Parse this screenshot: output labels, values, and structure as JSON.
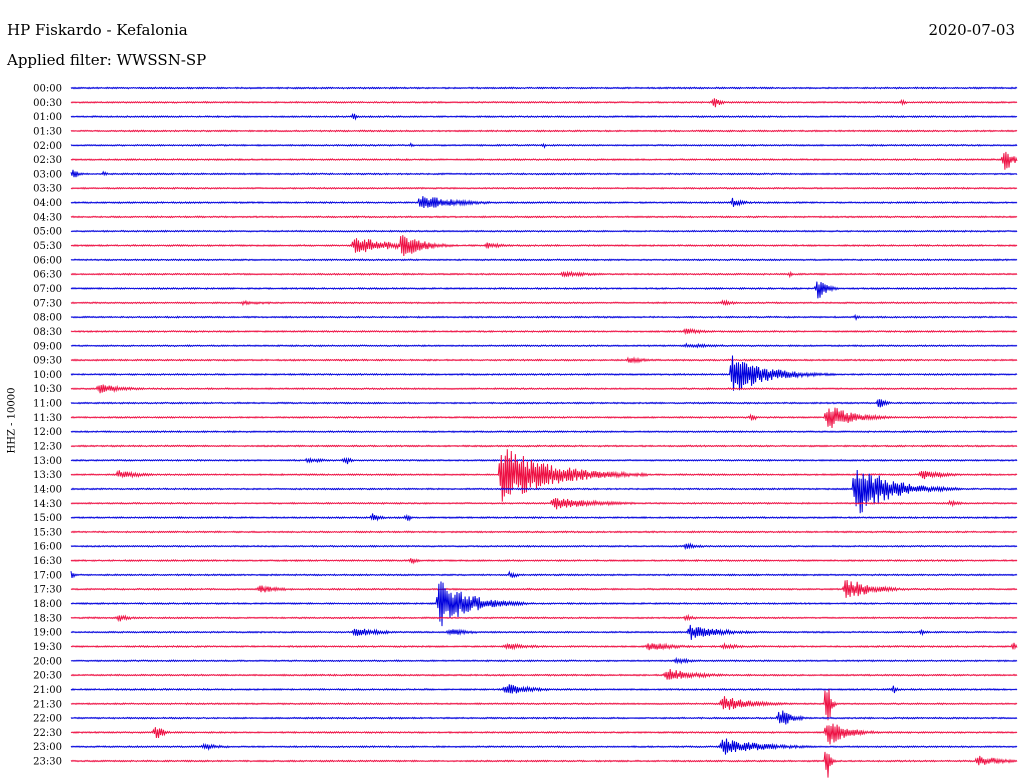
{
  "header": {
    "station": "HP Fiskardo - Kefalonia",
    "date": "2020-07-03",
    "filter": "Applied filter: WWSSN-SP"
  },
  "chart_data": {
    "type": "line",
    "ylabel": "HHZ - 10000",
    "trace_colors": [
      "#0000dd",
      "#ee1144"
    ],
    "rows": [
      {
        "label": "00:00",
        "events": []
      },
      {
        "label": "00:30",
        "events": [
          {
            "x": 0.68,
            "amp": 6,
            "dur": 0.006
          },
          {
            "x": 0.88,
            "amp": 4,
            "dur": 0.003
          }
        ]
      },
      {
        "label": "01:00",
        "events": [
          {
            "x": 0.3,
            "amp": 5,
            "dur": 0.002
          }
        ]
      },
      {
        "label": "01:30",
        "events": []
      },
      {
        "label": "02:00",
        "events": [
          {
            "x": 0.36,
            "amp": 2,
            "dur": 0.002
          },
          {
            "x": 0.5,
            "amp": 2,
            "dur": 0.002
          }
        ]
      },
      {
        "label": "02:30",
        "events": [
          {
            "x": 0.987,
            "amp": 14,
            "dur": 0.008
          }
        ]
      },
      {
        "label": "03:00",
        "events": [
          {
            "x": 0.002,
            "amp": 5,
            "dur": 0.006
          },
          {
            "x": 0.035,
            "amp": 3,
            "dur": 0.003
          }
        ]
      },
      {
        "label": "03:30",
        "events": []
      },
      {
        "label": "04:00",
        "events": [
          {
            "x": 0.37,
            "amp": 8,
            "dur": 0.035
          },
          {
            "x": 0.7,
            "amp": 5,
            "dur": 0.01
          }
        ]
      },
      {
        "label": "04:30",
        "events": []
      },
      {
        "label": "05:00",
        "events": []
      },
      {
        "label": "05:30",
        "events": [
          {
            "x": 0.3,
            "amp": 10,
            "dur": 0.035
          },
          {
            "x": 0.35,
            "amp": 14,
            "dur": 0.02
          },
          {
            "x": 0.44,
            "amp": 3,
            "dur": 0.02
          }
        ]
      },
      {
        "label": "06:00",
        "events": []
      },
      {
        "label": "06:30",
        "events": [
          {
            "x": 0.52,
            "amp": 3,
            "dur": 0.03
          },
          {
            "x": 0.76,
            "amp": 3,
            "dur": 0.005
          }
        ]
      },
      {
        "label": "07:00",
        "events": [
          {
            "x": 0.79,
            "amp": 12,
            "dur": 0.008
          }
        ]
      },
      {
        "label": "07:30",
        "events": [
          {
            "x": 0.18,
            "amp": 2,
            "dur": 0.04
          },
          {
            "x": 0.69,
            "amp": 3,
            "dur": 0.01
          }
        ]
      },
      {
        "label": "08:00",
        "events": [
          {
            "x": 0.83,
            "amp": 3,
            "dur": 0.005
          }
        ]
      },
      {
        "label": "08:30",
        "events": [
          {
            "x": 0.65,
            "amp": 3,
            "dur": 0.02
          }
        ]
      },
      {
        "label": "09:00",
        "events": [
          {
            "x": 0.65,
            "amp": 2,
            "dur": 0.05
          }
        ]
      },
      {
        "label": "09:30",
        "events": [
          {
            "x": 0.59,
            "amp": 3,
            "dur": 0.02
          }
        ]
      },
      {
        "label": "10:00",
        "events": [
          {
            "x": 0.7,
            "amp": 20,
            "dur": 0.035
          }
        ]
      },
      {
        "label": "10:30",
        "events": [
          {
            "x": 0.03,
            "amp": 5,
            "dur": 0.025
          }
        ]
      },
      {
        "label": "11:00",
        "events": [
          {
            "x": 0.855,
            "amp": 7,
            "dur": 0.006
          }
        ]
      },
      {
        "label": "11:30",
        "events": [
          {
            "x": 0.72,
            "amp": 4,
            "dur": 0.005
          },
          {
            "x": 0.8,
            "amp": 14,
            "dur": 0.025
          }
        ]
      },
      {
        "label": "12:00",
        "events": []
      },
      {
        "label": "12:30",
        "events": []
      },
      {
        "label": "13:00",
        "events": [
          {
            "x": 0.25,
            "amp": 3,
            "dur": 0.015
          },
          {
            "x": 0.29,
            "amp": 5,
            "dur": 0.005
          }
        ]
      },
      {
        "label": "13:30",
        "events": [
          {
            "x": 0.05,
            "amp": 5,
            "dur": 0.02
          },
          {
            "x": 0.455,
            "amp": 30,
            "dur": 0.05
          },
          {
            "x": 0.9,
            "amp": 5,
            "dur": 0.025
          }
        ]
      },
      {
        "label": "14:00",
        "events": [
          {
            "x": 0.83,
            "amp": 28,
            "dur": 0.035
          }
        ]
      },
      {
        "label": "14:30",
        "events": [
          {
            "x": 0.51,
            "amp": 7,
            "dur": 0.04
          },
          {
            "x": 0.93,
            "amp": 3,
            "dur": 0.01
          }
        ]
      },
      {
        "label": "15:00",
        "events": [
          {
            "x": 0.32,
            "amp": 6,
            "dur": 0.006
          },
          {
            "x": 0.355,
            "amp": 4,
            "dur": 0.004
          }
        ]
      },
      {
        "label": "15:30",
        "events": []
      },
      {
        "label": "16:00",
        "events": [
          {
            "x": 0.65,
            "amp": 3,
            "dur": 0.015
          }
        ]
      },
      {
        "label": "16:30",
        "events": [
          {
            "x": 0.36,
            "amp": 4,
            "dur": 0.005
          }
        ]
      },
      {
        "label": "17:00",
        "events": [
          {
            "x": 0.0,
            "amp": 4,
            "dur": 0.003
          },
          {
            "x": 0.465,
            "amp": 4,
            "dur": 0.006
          }
        ]
      },
      {
        "label": "17:30",
        "events": [
          {
            "x": 0.2,
            "amp": 4,
            "dur": 0.02
          },
          {
            "x": 0.82,
            "amp": 12,
            "dur": 0.025
          }
        ]
      },
      {
        "label": "18:00",
        "events": [
          {
            "x": 0.39,
            "amp": 26,
            "dur": 0.03
          }
        ]
      },
      {
        "label": "18:30",
        "events": [
          {
            "x": 0.05,
            "amp": 4,
            "dur": 0.01
          },
          {
            "x": 0.65,
            "amp": 3,
            "dur": 0.01
          }
        ]
      },
      {
        "label": "19:00",
        "events": [
          {
            "x": 0.3,
            "amp": 5,
            "dur": 0.025
          },
          {
            "x": 0.4,
            "amp": 4,
            "dur": 0.02
          },
          {
            "x": 0.655,
            "amp": 8,
            "dur": 0.03
          },
          {
            "x": 0.9,
            "amp": 3,
            "dur": 0.005
          }
        ]
      },
      {
        "label": "19:30",
        "events": [
          {
            "x": 0.46,
            "amp": 3,
            "dur": 0.03
          },
          {
            "x": 0.61,
            "amp": 5,
            "dur": 0.025
          },
          {
            "x": 0.69,
            "amp": 3,
            "dur": 0.02
          },
          {
            "x": 0.997,
            "amp": 5,
            "dur": 0.004
          }
        ]
      },
      {
        "label": "20:00",
        "events": [
          {
            "x": 0.64,
            "amp": 3,
            "dur": 0.02
          }
        ]
      },
      {
        "label": "20:30",
        "events": [
          {
            "x": 0.63,
            "amp": 7,
            "dur": 0.03
          }
        ]
      },
      {
        "label": "21:00",
        "events": [
          {
            "x": 0.46,
            "amp": 6,
            "dur": 0.025
          },
          {
            "x": 0.87,
            "amp": 4,
            "dur": 0.004
          }
        ]
      },
      {
        "label": "21:30",
        "events": [
          {
            "x": 0.69,
            "amp": 8,
            "dur": 0.03
          },
          {
            "x": 0.8,
            "amp": 30,
            "dur": 0.003
          }
        ]
      },
      {
        "label": "22:00",
        "events": [
          {
            "x": 0.75,
            "amp": 10,
            "dur": 0.012
          }
        ]
      },
      {
        "label": "22:30",
        "events": [
          {
            "x": 0.09,
            "amp": 10,
            "dur": 0.006
          },
          {
            "x": 0.8,
            "amp": 14,
            "dur": 0.02
          }
        ]
      },
      {
        "label": "23:00",
        "events": [
          {
            "x": 0.14,
            "amp": 3,
            "dur": 0.02
          },
          {
            "x": 0.69,
            "amp": 9,
            "dur": 0.04
          }
        ]
      },
      {
        "label": "23:30",
        "events": [
          {
            "x": 0.8,
            "amp": 20,
            "dur": 0.003
          },
          {
            "x": 0.96,
            "amp": 6,
            "dur": 0.025
          }
        ]
      }
    ]
  }
}
